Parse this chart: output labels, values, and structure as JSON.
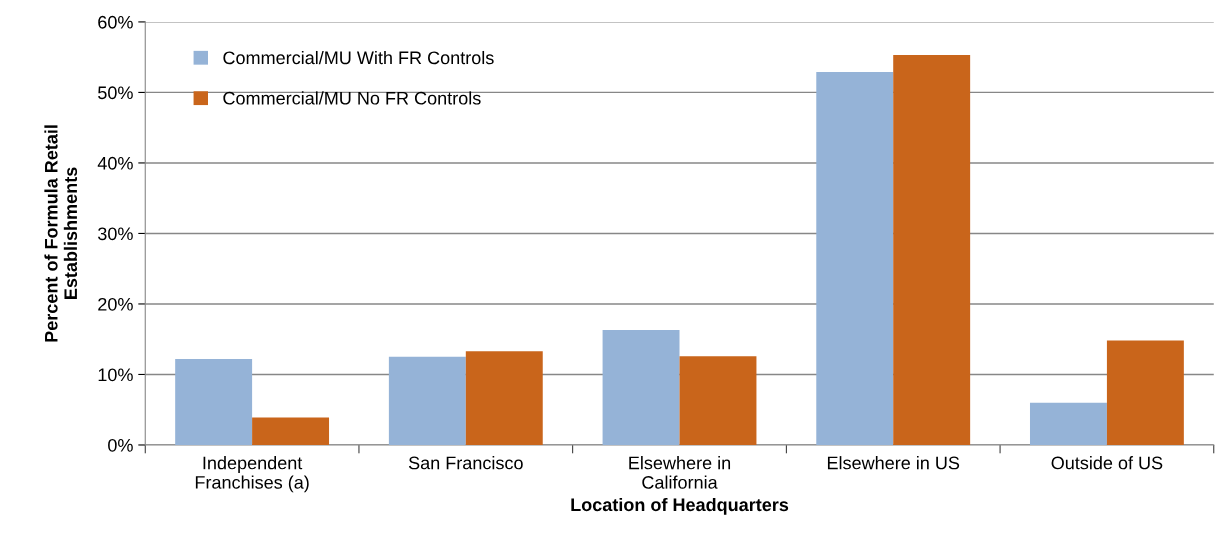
{
  "chart_data": {
    "type": "bar",
    "xlabel": "Location of Headquarters",
    "ylabel": "Percent of Formula Retail\nEstablishments",
    "categories": [
      "Independent\nFranchises (a)",
      "San Francisco",
      "Elsewhere in\nCalifornia",
      "Elsewhere in US",
      "Outside of US"
    ],
    "series": [
      {
        "name": "Commercial/MU With FR Controls",
        "color": "#95b3d7",
        "values": [
          12.2,
          12.5,
          16.3,
          52.9,
          6.0
        ]
      },
      {
        "name": "Commercial/MU No FR Controls",
        "color": "#c9651b",
        "values": [
          3.9,
          13.3,
          12.6,
          55.3,
          14.8
        ]
      }
    ],
    "ylim": [
      0,
      60
    ],
    "yticks": [
      {
        "value": 0,
        "label": "0%"
      },
      {
        "value": 10,
        "label": "10%"
      },
      {
        "value": 20,
        "label": "20%"
      },
      {
        "value": 30,
        "label": "30%"
      },
      {
        "value": 40,
        "label": "40%"
      },
      {
        "value": 50,
        "label": "50%"
      },
      {
        "value": 60,
        "label": "60%"
      }
    ],
    "grid": "y",
    "legend": "top left"
  }
}
